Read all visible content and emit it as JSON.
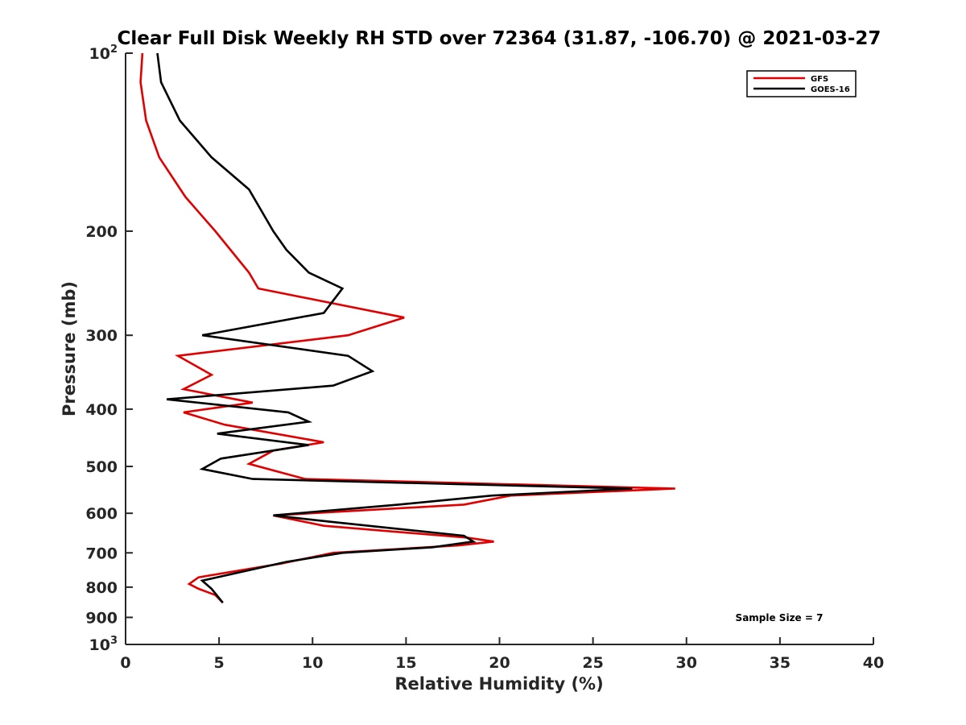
{
  "chart_data": {
    "type": "line",
    "title": "Clear Full Disk Weekly RH STD over 72364 (31.87, -106.70) @ 2021-03-27",
    "xlabel": "Relative Humidity (%)",
    "ylabel": "Pressure (mb)",
    "xlim": [
      0,
      40
    ],
    "ylim": [
      100,
      1000
    ],
    "y_scale": "log",
    "y_reversed": true,
    "x_ticks": [
      0,
      5,
      10,
      15,
      20,
      25,
      30,
      35,
      40
    ],
    "x_tick_labels": [
      "0",
      "5",
      "10",
      "15",
      "20",
      "25",
      "30",
      "35",
      "40"
    ],
    "y_ticks": [
      100,
      200,
      300,
      400,
      500,
      600,
      700,
      800,
      900,
      1000
    ],
    "y_tick_labels": [
      {
        "base": "10",
        "exp": "2"
      },
      {
        "base": "200",
        "exp": ""
      },
      {
        "base": "300",
        "exp": ""
      },
      {
        "base": "400",
        "exp": ""
      },
      {
        "base": "500",
        "exp": ""
      },
      {
        "base": "600",
        "exp": ""
      },
      {
        "base": "700",
        "exp": ""
      },
      {
        "base": "800",
        "exp": ""
      },
      {
        "base": "900",
        "exp": ""
      },
      {
        "base": "10",
        "exp": "3"
      }
    ],
    "grid": false,
    "legend_position": "top-right",
    "annotation": "Sample Size = 7",
    "series": [
      {
        "name": "GFS",
        "color": "#e00000",
        "x": [
          0.9,
          0.8,
          1.1,
          1.8,
          3.2,
          4.8,
          6.6,
          7.1,
          14.9,
          11.9,
          2.8,
          4.6,
          3.1,
          6.8,
          3.1,
          5.3,
          10.6,
          7.9,
          6.6,
          9.6,
          29.4,
          20.6,
          18.1,
          7.9,
          10.6,
          18.3,
          19.7,
          17.8,
          11.1,
          8.3,
          3.9,
          3.4,
          3.9,
          4.8,
          5.2
        ],
        "y": [
          100,
          112,
          130,
          150,
          175,
          200,
          235,
          250,
          280,
          300,
          325,
          350,
          370,
          390,
          405,
          425,
          455,
          470,
          495,
          525,
          545,
          560,
          580,
          605,
          630,
          660,
          670,
          680,
          700,
          730,
          770,
          790,
          805,
          825,
          850
        ]
      },
      {
        "name": "GOES-16",
        "color": "#000000",
        "x": [
          1.7,
          1.9,
          2.9,
          4.6,
          6.6,
          7.9,
          8.6,
          9.8,
          11.6,
          10.6,
          4.1,
          11.9,
          13.2,
          11.1,
          2.2,
          8.7,
          9.8,
          4.9,
          9.8,
          5.1,
          4.1,
          6.8,
          27.1,
          19.6,
          14.6,
          7.9,
          10.9,
          18.1,
          18.6,
          16.4,
          11.6,
          8.6,
          4.1,
          4.6,
          5.2
        ],
        "y": [
          100,
          112,
          130,
          150,
          170,
          200,
          215,
          235,
          250,
          275,
          300,
          325,
          345,
          365,
          385,
          405,
          420,
          440,
          460,
          485,
          505,
          525,
          545,
          560,
          580,
          605,
          620,
          655,
          670,
          685,
          700,
          725,
          780,
          805,
          850
        ]
      }
    ]
  }
}
